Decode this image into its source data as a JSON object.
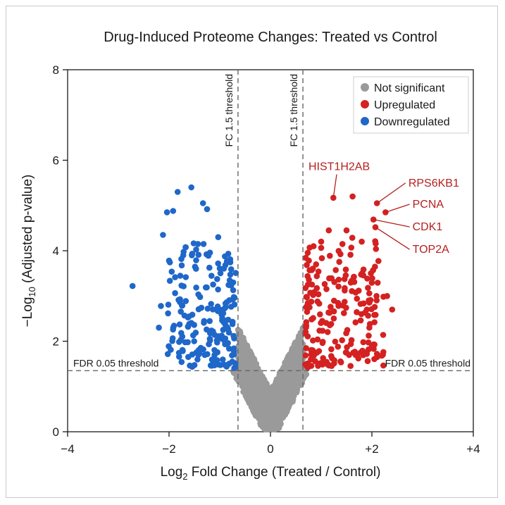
{
  "chart_data": {
    "type": "scatter",
    "title": "Drug-Induced Proteome Changes: Treated vs Control",
    "xlabel": "Log",
    "xlabel_sub": "2",
    "xlabel_rest": " Fold Change (Treated / Control)",
    "ylabel": "−Log",
    "ylabel_sub": "10",
    "ylabel_rest": " (Adjusted p-value)",
    "xlim": [
      -4,
      4
    ],
    "ylim": [
      0,
      8
    ],
    "x_ticks": [
      {
        "value": -4,
        "label": "−4"
      },
      {
        "value": -2,
        "label": "−2"
      },
      {
        "value": 0,
        "label": "0"
      },
      {
        "value": 2,
        "label": "+2"
      },
      {
        "value": 4,
        "label": "+4"
      }
    ],
    "y_ticks": [
      {
        "value": 0,
        "label": "0"
      },
      {
        "value": 2,
        "label": "2"
      },
      {
        "value": 4,
        "label": "4"
      },
      {
        "value": 6,
        "label": "6"
      },
      {
        "value": 8,
        "label": "8"
      }
    ],
    "grid": false,
    "legend_position": "top-right",
    "thresholds": {
      "fc_left": -0.64,
      "fc_right": 0.64,
      "fc_label": "FC 1.5 threshold",
      "fdr": 1.35,
      "fdr_label": "FDR 0.05 threshold"
    },
    "colors": {
      "not_significant": "#9a9a9a",
      "upregulated": "#d42121",
      "downregulated": "#1f67c9",
      "threshold_line": "#666666",
      "gene_label": "#b51f1f"
    },
    "series": [
      {
        "key": "ns",
        "name": "Not significant",
        "color": "#9a9a9a",
        "generator": {
          "count": 1300,
          "seed": 11
        }
      },
      {
        "key": "up",
        "name": "Upregulated",
        "color": "#d42121",
        "points": [
          [
            1.24,
            5.17
          ],
          [
            1.62,
            5.2
          ],
          [
            2.1,
            5.05
          ],
          [
            2.27,
            4.85
          ],
          [
            2.03,
            4.69
          ],
          [
            2.07,
            4.52
          ],
          [
            1.15,
            4.45
          ],
          [
            1.5,
            4.45
          ],
          [
            0.85,
            4.1
          ],
          [
            1.0,
            4.2
          ],
          [
            1.42,
            4.15
          ],
          [
            1.8,
            4.2
          ],
          [
            2.3,
            3.0
          ],
          [
            2.4,
            2.7
          ],
          [
            1.98,
            3.5
          ],
          [
            0.9,
            3.7
          ],
          [
            1.9,
            2.7
          ],
          [
            1.95,
            2.3
          ]
        ],
        "generator": {
          "count": 210,
          "seed": 23
        }
      },
      {
        "key": "down",
        "name": "Downregulated",
        "color": "#1f67c9",
        "points": [
          [
            -2.72,
            3.22
          ],
          [
            -1.56,
            5.4
          ],
          [
            -1.83,
            5.3
          ],
          [
            -1.92,
            4.88
          ],
          [
            -2.04,
            4.85
          ],
          [
            -1.33,
            5.05
          ],
          [
            -1.25,
            4.92
          ],
          [
            -2.12,
            4.35
          ],
          [
            -1.03,
            4.3
          ],
          [
            -1.43,
            4.15
          ],
          [
            -1.32,
            4.15
          ],
          [
            -2.0,
            3.78
          ],
          [
            -1.72,
            3.9
          ],
          [
            -2.2,
            2.3
          ],
          [
            -2.16,
            2.78
          ],
          [
            -1.55,
            3.9
          ]
        ],
        "generator": {
          "count": 190,
          "seed": 37
        }
      }
    ],
    "annotations": [
      {
        "label": "HIST1H2AB",
        "point": [
          1.24,
          5.17
        ],
        "text": [
          0.75,
          5.78
        ],
        "anchor": "start"
      },
      {
        "label": "RPS6KB1",
        "point": [
          2.1,
          5.05
        ],
        "text": [
          2.72,
          5.42
        ],
        "anchor": "start"
      },
      {
        "label": "PCNA",
        "point": [
          2.27,
          4.85
        ],
        "text": [
          2.8,
          4.95
        ],
        "anchor": "start"
      },
      {
        "label": "CDK1",
        "point": [
          2.03,
          4.69
        ],
        "text": [
          2.8,
          4.45
        ],
        "anchor": "start"
      },
      {
        "label": "TOP2A",
        "point": [
          2.07,
          4.52
        ],
        "text": [
          2.8,
          3.95
        ],
        "anchor": "start"
      }
    ]
  }
}
